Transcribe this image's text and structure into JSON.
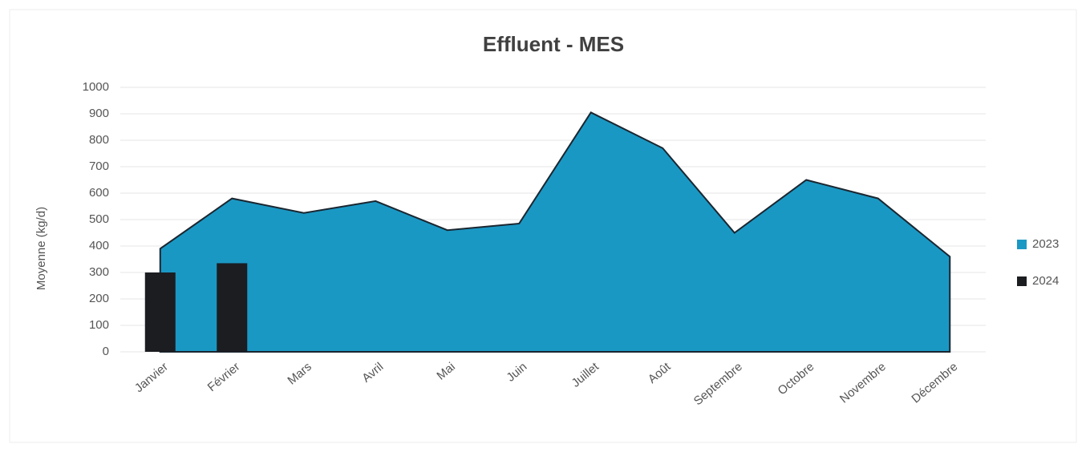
{
  "chart_data": {
    "type": "combo",
    "title": "Effluent - MES",
    "y_label": "Moyenne (kg/d)",
    "categories": [
      "Janvier",
      "Février",
      "Mars",
      "Avril",
      "Mai",
      "Juin",
      "Juillet",
      "Août",
      "Septembre",
      "Octobre",
      "Novembre",
      "Décembre"
    ],
    "series": [
      {
        "name": "2023",
        "type": "area",
        "color": "#1a98c4",
        "values": [
          390,
          580,
          525,
          570,
          460,
          485,
          905,
          770,
          450,
          650,
          580,
          360
        ]
      },
      {
        "name": "2024",
        "type": "bar",
        "color": "#1b1d21",
        "values": [
          300,
          335,
          null,
          null,
          null,
          null,
          null,
          null,
          null,
          null,
          null,
          null
        ]
      }
    ],
    "ylim": [
      0,
      1000
    ],
    "yticks": [
      0,
      100,
      200,
      300,
      400,
      500,
      600,
      700,
      800,
      900,
      1000
    ],
    "grid": true,
    "legend": "right"
  }
}
